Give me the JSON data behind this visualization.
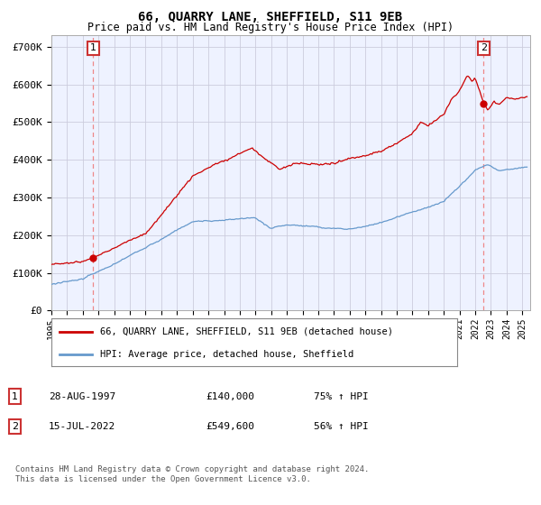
{
  "title": "66, QUARRY LANE, SHEFFIELD, S11 9EB",
  "subtitle": "Price paid vs. HM Land Registry's House Price Index (HPI)",
  "ylabel_ticks": [
    "£0",
    "£100K",
    "£200K",
    "£300K",
    "£400K",
    "£500K",
    "£600K",
    "£700K"
  ],
  "ytick_values": [
    0,
    100000,
    200000,
    300000,
    400000,
    500000,
    600000,
    700000
  ],
  "ylim": [
    0,
    730000
  ],
  "xlim_start": 1995.0,
  "xlim_end": 2025.5,
  "sale1_x": 1997.67,
  "sale1_y": 140000,
  "sale2_x": 2022.54,
  "sale2_y": 549600,
  "red_color": "#cc0000",
  "blue_color": "#6699cc",
  "dashed_color": "#ee8888",
  "background_plot": "#eef2ff",
  "background_fig": "#ffffff",
  "grid_color": "#ccccdd",
  "legend_line1": "66, QUARRY LANE, SHEFFIELD, S11 9EB (detached house)",
  "legend_line2": "HPI: Average price, detached house, Sheffield",
  "annot1_date": "28-AUG-1997",
  "annot1_price": "£140,000",
  "annot1_hpi": "75% ↑ HPI",
  "annot2_date": "15-JUL-2022",
  "annot2_price": "£549,600",
  "annot2_hpi": "56% ↑ HPI",
  "footer": "Contains HM Land Registry data © Crown copyright and database right 2024.\nThis data is licensed under the Open Government Licence v3.0."
}
